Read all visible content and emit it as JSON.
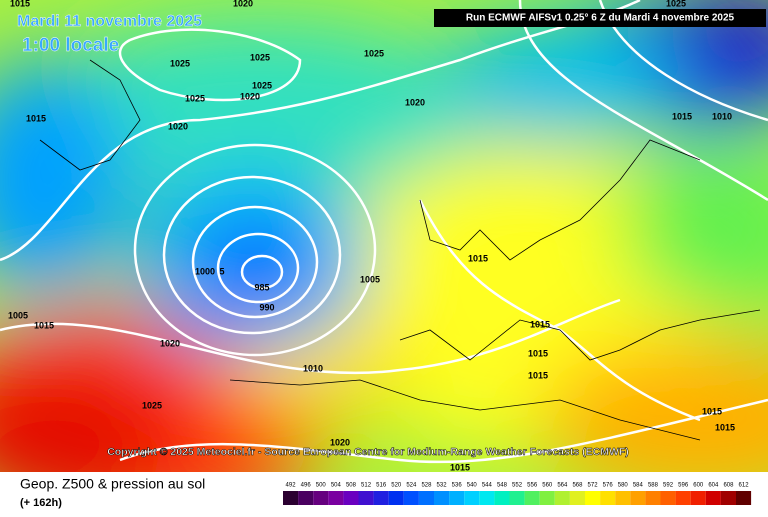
{
  "header": {
    "date": "Mardi 11 novembre 2025",
    "time": "1:00 locale",
    "run": "Run ECMWF AIFSv1 0.25° 6 Z du Mardi 4 novembre 2025"
  },
  "map": {
    "copyright": "Copyright © 2025 Meteociel.fr - Source European Centre for Medium-Range Weather Forecasts (ECMWF)",
    "isobar_labels": [
      "1020",
      "1025",
      "1025",
      "1025",
      "1025",
      "1025",
      "1020",
      "1020",
      "1020",
      "1015",
      "1015",
      "1015",
      "1010",
      "1025",
      "1015",
      "1005",
      "1000",
      "5",
      "985",
      "990",
      "1015",
      "1015",
      "1015",
      "1010",
      "1020",
      "1025",
      "1020",
      "1015",
      "1015",
      "1015",
      "1005",
      "1015"
    ]
  },
  "footer": {
    "title": "Geop. Z500 & pression au sol",
    "range": "(+ 162h)"
  },
  "scale": {
    "labels": [
      492,
      496,
      500,
      504,
      508,
      512,
      516,
      520,
      524,
      528,
      532,
      536,
      540,
      544,
      548,
      552,
      556,
      560,
      564,
      568,
      572,
      576,
      580,
      584,
      588,
      592,
      596,
      600,
      604,
      608,
      612
    ],
    "colors": [
      "#2b0030",
      "#4a0060",
      "#66007f",
      "#7a00a0",
      "#6a00c0",
      "#4010d0",
      "#2020e0",
      "#0030f0",
      "#0050ff",
      "#0070ff",
      "#0090ff",
      "#00b0ff",
      "#00d0ff",
      "#00e8f0",
      "#00f0c0",
      "#20f090",
      "#50f060",
      "#80f040",
      "#b0f030",
      "#e0f020",
      "#ffff00",
      "#ffe000",
      "#ffc000",
      "#ffa000",
      "#ff8000",
      "#ff6000",
      "#ff4000",
      "#f02000",
      "#d00000",
      "#a00000",
      "#600000"
    ]
  }
}
